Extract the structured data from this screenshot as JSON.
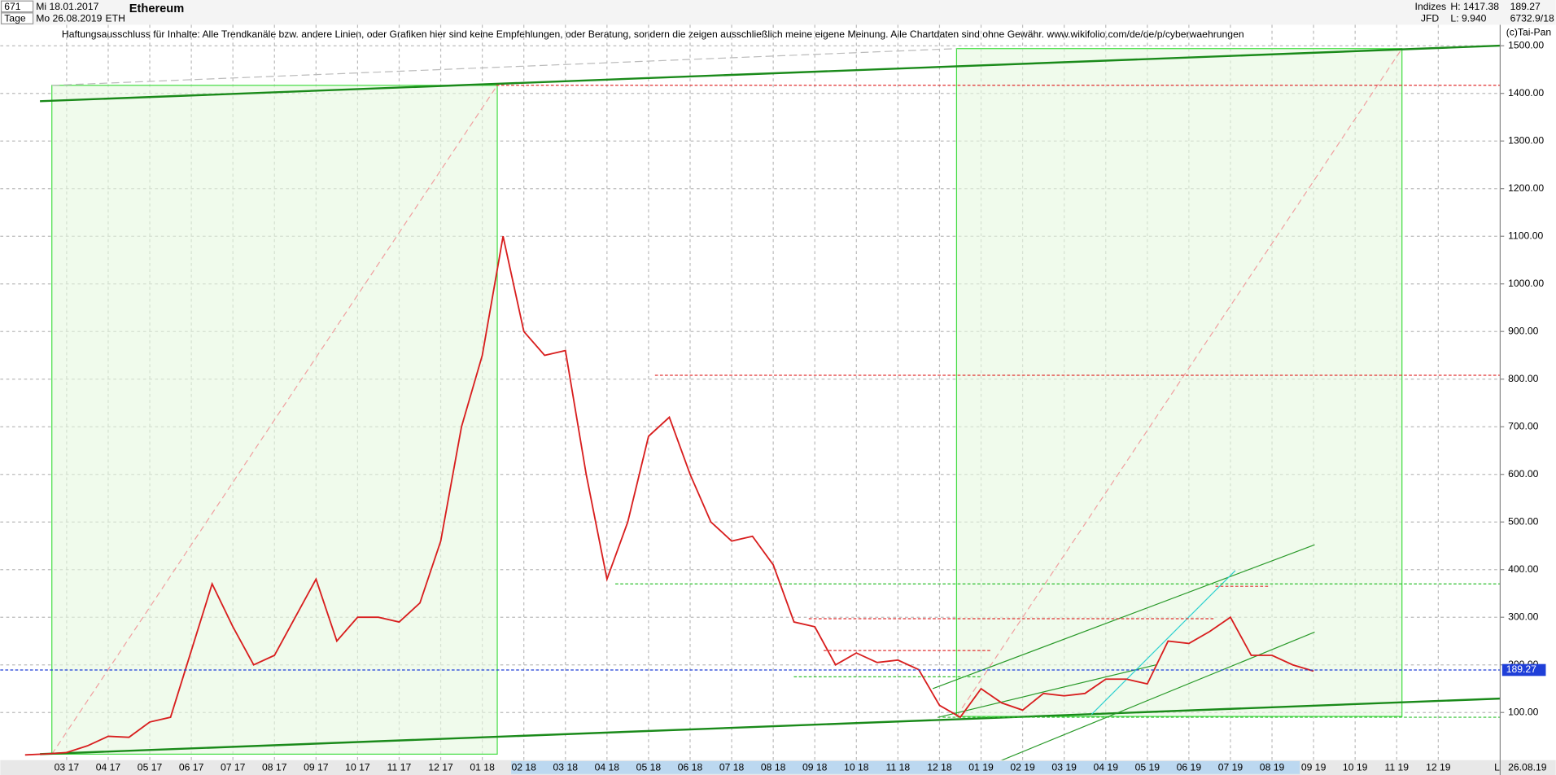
{
  "header": {
    "count": "671",
    "date_from": "Mi 18.01.2017",
    "period": "Tage",
    "date_to": "Mo 26.08.2019",
    "symbol": "ETH",
    "title": "Ethereum",
    "group": "Indizes",
    "broker": "JFD",
    "high": "H: 1417.38",
    "low": "L: 9.940",
    "last": "189.27",
    "info": "6732.9/18",
    "copyright": "(c)Tai-Pan",
    "disclaimer": "Haftungsausschluss für Inhalte: Alle Trendkanäle bzw. andere Linien, oder Grafiken hier sind keine Empfehlungen, oder Beratung, sondern die zeigen ausschließlich meine eigene Meinung. Alle Chartdaten sind ohne Gewähr.  www.wikifolio.com/de/de/p/cyberwaehrungen"
  },
  "chart_data": {
    "type": "line",
    "categories": [
      null,
      null,
      "03 17",
      null,
      "04 17",
      null,
      "05 17",
      null,
      "06 17",
      null,
      "07 17",
      null,
      "08 17",
      null,
      "09 17",
      null,
      "10 17",
      null,
      "11 17",
      null,
      "12 17",
      null,
      "01 18",
      null,
      "02 18",
      null,
      "03 18",
      null,
      "04 18",
      null,
      "05 18",
      null,
      "06 18",
      null,
      "07 18",
      null,
      "08 18",
      null,
      "09 18",
      null,
      "10 18",
      null,
      "11 18",
      null,
      "12 18",
      null,
      "01 19",
      null,
      "02 19",
      null,
      "03 19",
      null,
      "04 19",
      null,
      "05 19",
      null,
      "06 19",
      null,
      "07 19",
      null,
      "08 19",
      null,
      "09 19",
      null,
      "10 19",
      null,
      "11 19",
      null,
      "12 19",
      null
    ],
    "values": [
      11,
      13,
      16,
      30,
      50,
      48,
      80,
      90,
      230,
      370,
      280,
      200,
      220,
      300,
      380,
      250,
      300,
      300,
      290,
      330,
      460,
      700,
      850,
      1100,
      900,
      850,
      860,
      600,
      380,
      500,
      680,
      720,
      600,
      500,
      460,
      470,
      410,
      290,
      280,
      200,
      225,
      205,
      210,
      190,
      115,
      90,
      150,
      120,
      105,
      140,
      135,
      140,
      170,
      170,
      160,
      250,
      245,
      270,
      300,
      220,
      220,
      200,
      187,
      null,
      null,
      null,
      null,
      null,
      null,
      null
    ],
    "color": "#d81e1e",
    "ylim": [
      0,
      1544
    ],
    "yticks": [
      {
        "value": 100,
        "label": "100.00"
      },
      {
        "value": 200,
        "label": "200.00"
      },
      {
        "value": 300,
        "label": "300.00"
      },
      {
        "value": 400,
        "label": "400.00"
      },
      {
        "value": 500,
        "label": "500.00"
      },
      {
        "value": 600,
        "label": "600.00"
      },
      {
        "value": 700,
        "label": "700.00"
      },
      {
        "value": 800,
        "label": "800.00"
      },
      {
        "value": 900,
        "label": "900.00"
      },
      {
        "value": 1000,
        "label": "1000.00"
      },
      {
        "value": 1100,
        "label": "1100.00"
      },
      {
        "value": 1200,
        "label": "1200.00"
      },
      {
        "value": 1300,
        "label": "1300.00"
      },
      {
        "value": 1400,
        "label": "1400.00"
      },
      {
        "value": 1500,
        "label": "1500.00"
      }
    ],
    "grid": true,
    "last_value": 189.27,
    "last_value_color": "#1f3fd8",
    "reference_lines": [
      {
        "value": 1417,
        "color": "#e03030"
      },
      {
        "value": 808,
        "color": "#e03030"
      },
      {
        "value": 370,
        "color": "#30c030"
      },
      {
        "value": 365,
        "color": "#e03030"
      },
      {
        "value": 297,
        "color": "#e03030"
      },
      {
        "value": 230,
        "color": "#e03030"
      },
      {
        "value": 175,
        "color": "#30c030"
      },
      {
        "value": 90,
        "color": "#30c030"
      }
    ],
    "date_label": "26.08.19",
    "scale_label": "L"
  }
}
